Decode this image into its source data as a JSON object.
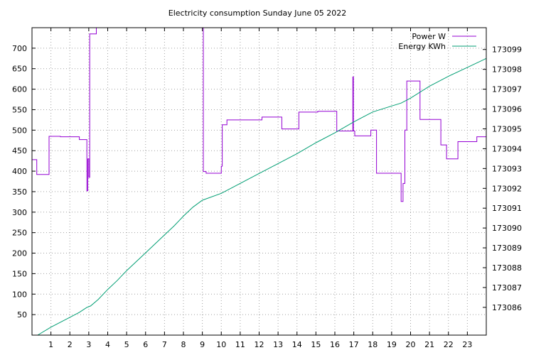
{
  "chart_data": {
    "type": "line",
    "title": "Electricity consumption Sunday June 05 2022",
    "x_tick_labels": [
      "1",
      "2",
      "3",
      "4",
      "5",
      "6",
      "7",
      "8",
      "9",
      "10",
      "11",
      "12",
      "13",
      "14",
      "15",
      "16",
      "17",
      "18",
      "19",
      "20",
      "21",
      "22",
      "23"
    ],
    "xlim": [
      0,
      24
    ],
    "y_left": {
      "range": [
        0,
        750
      ],
      "tick_labels": [
        "50",
        "100",
        "150",
        "200",
        "250",
        "300",
        "350",
        "400",
        "450",
        "500",
        "550",
        "600",
        "650",
        "700"
      ]
    },
    "y_right": {
      "range": [
        173084.6,
        173100.1
      ],
      "tick_labels": [
        "173086",
        "173087",
        "173088",
        "173089",
        "173090",
        "173091",
        "173092",
        "173093",
        "173094",
        "173095",
        "173096",
        "173097",
        "173098",
        "173099"
      ]
    },
    "grid": true,
    "legend_position": "top-right",
    "series": [
      {
        "name": "Power W",
        "axis": "left",
        "color": "#9400d3",
        "step": true,
        "x": [
          0.0,
          0.25,
          0.9,
          1.5,
          2.5,
          2.9,
          2.95,
          3.0,
          3.05,
          3.4,
          8.98,
          9.05,
          9.2,
          10.0,
          10.05,
          10.3,
          12.15,
          13.2,
          14.1,
          15.1,
          16.1,
          16.95,
          16.98,
          17.05,
          17.9,
          18.2,
          18.3,
          19.5,
          19.6,
          19.7,
          19.8,
          20.5,
          21.6,
          21.9,
          22.5,
          23.5,
          24.0
        ],
        "y": [
          428,
          392,
          485,
          484,
          477,
          352,
          430,
          385,
          735,
          750,
          750,
          399,
          395,
          412,
          513,
          525,
          532,
          503,
          544,
          546,
          498,
          630,
          498,
          486,
          500,
          395,
          395,
          326,
          370,
          500,
          620,
          526,
          464,
          430,
          472,
          484,
          484
        ]
      },
      {
        "name": "Energy KWh",
        "axis": "right",
        "color": "#009e73",
        "step": false,
        "x": [
          0.3,
          1.0,
          2.0,
          2.5,
          2.9,
          3.1,
          3.5,
          4.0,
          4.5,
          5.0,
          6.0,
          7.0,
          7.5,
          8.0,
          8.5,
          9.0,
          10.0,
          11.0,
          12.0,
          13.0,
          14.0,
          15.0,
          16.0,
          17.0,
          18.0,
          19.0,
          19.5,
          20.0,
          21.0,
          22.0,
          23.0,
          24.0
        ],
        "y": [
          173084.6,
          173085.0,
          173085.5,
          173085.75,
          173086.0,
          173086.07,
          173086.4,
          173086.9,
          173087.35,
          173087.85,
          173088.75,
          173089.65,
          173090.1,
          173090.6,
          173091.05,
          173091.4,
          173091.75,
          173092.25,
          173092.75,
          173093.25,
          173093.75,
          173094.3,
          173094.8,
          173095.35,
          173095.85,
          173096.15,
          173096.3,
          173096.55,
          173097.15,
          173097.65,
          173098.1,
          173098.55
        ]
      }
    ]
  }
}
